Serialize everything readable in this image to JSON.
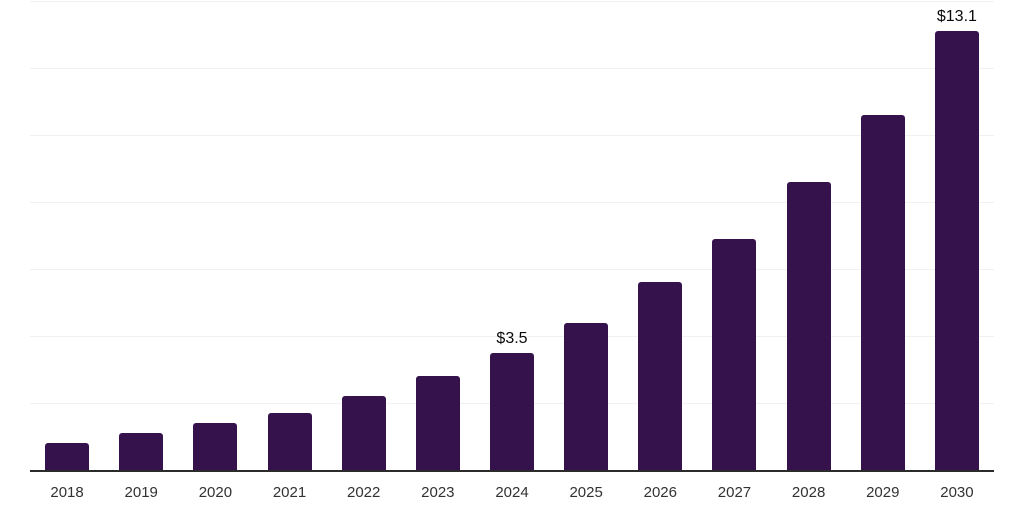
{
  "chart_data": {
    "type": "bar",
    "title": "",
    "categories": [
      "2018",
      "2019",
      "2020",
      "2021",
      "2022",
      "2023",
      "2024",
      "2025",
      "2026",
      "2027",
      "2028",
      "2029",
      "2030"
    ],
    "values": [
      0.8,
      1.1,
      1.4,
      1.7,
      2.2,
      2.8,
      3.5,
      4.4,
      5.6,
      6.9,
      8.6,
      10.6,
      13.1
    ],
    "value_labels": [
      "",
      "",
      "",
      "",
      "",
      "",
      "$3.5",
      "",
      "",
      "",
      "",
      "",
      "$13.1"
    ],
    "xlabel": "",
    "ylabel": "",
    "ylim": [
      0,
      14
    ],
    "gridline_step": 2,
    "grid": true,
    "legend_position": "none",
    "colors": {
      "bar": "#36124d",
      "axis_line": "#2b2b2b",
      "gridline": "#f1f1f2",
      "x_label_text": "#323232",
      "value_label_text": "#0a0a0a",
      "background": "#ffffff"
    }
  }
}
